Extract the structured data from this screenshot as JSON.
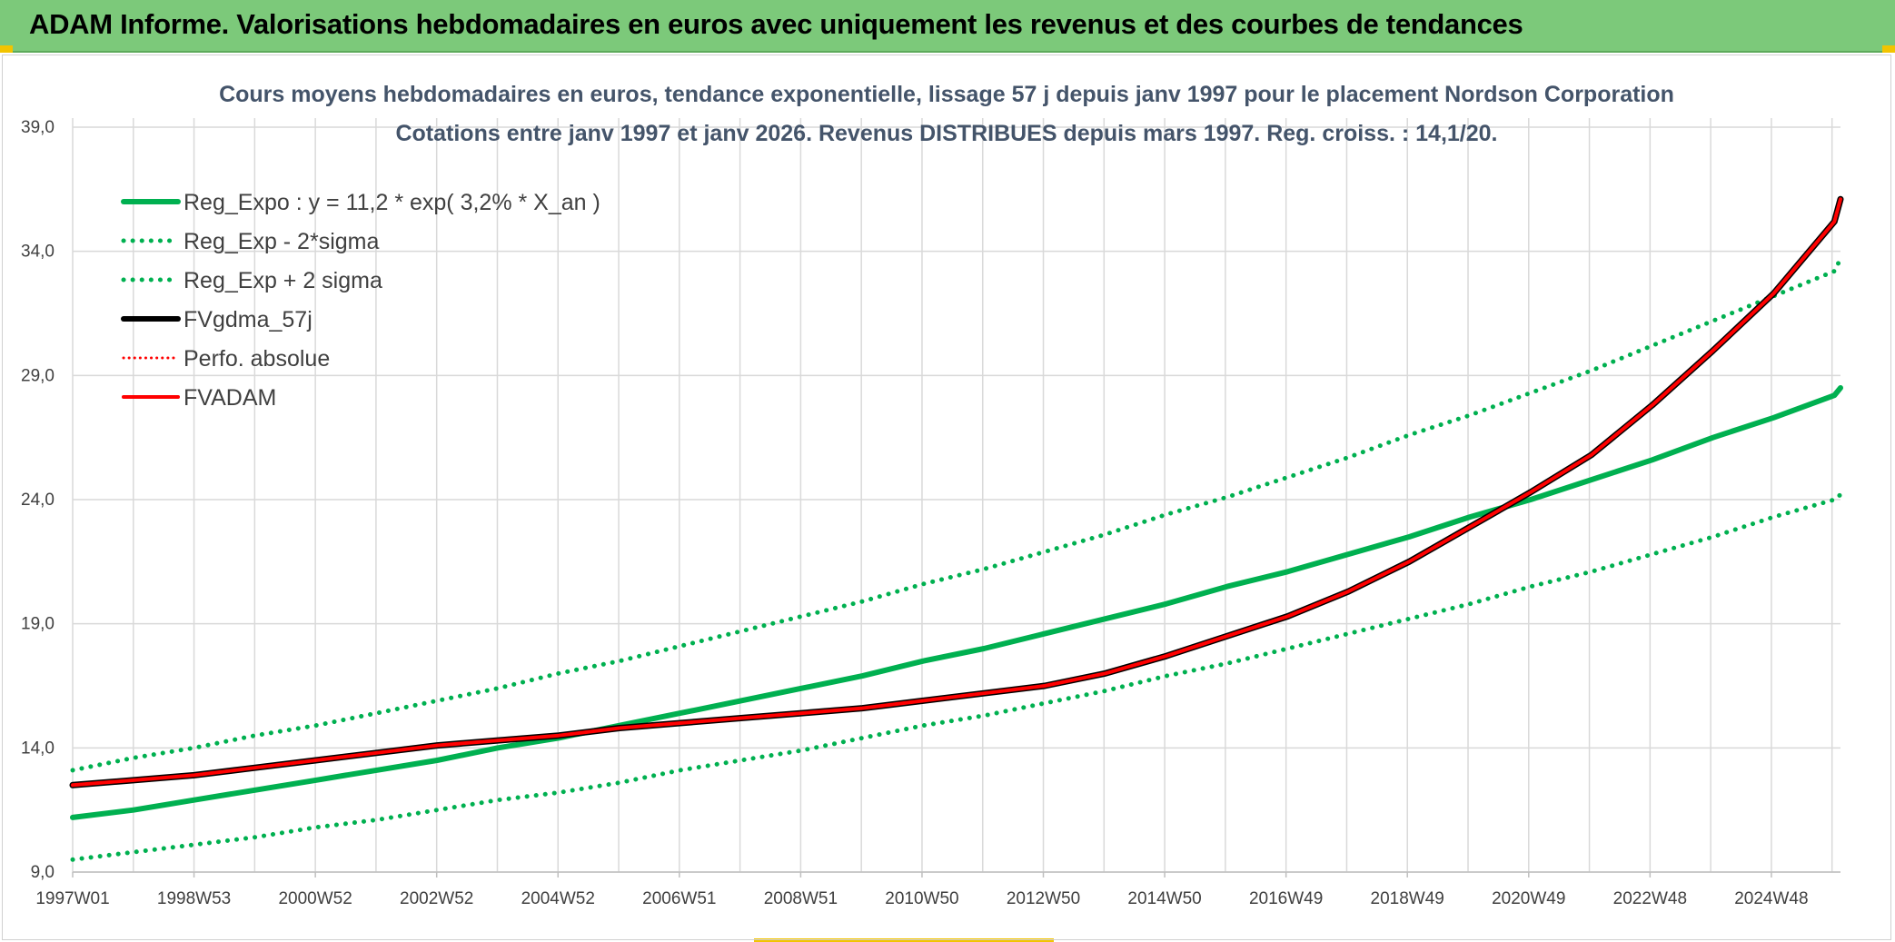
{
  "header": {
    "title": "ADAM Informe. Valorisations hebdomadaires en euros avec uniquement les revenus et des courbes de tendances"
  },
  "chart_data": {
    "type": "line",
    "title": "Cours moyens hebdomadaires en euros, tendance exponentielle, lissage 57 j depuis janv 1997 pour le placement Nordson Corporation",
    "subtitle": "Cotations entre janv 1997 et janv 2026. Revenus DISTRIBUES depuis mars 1997. Reg. croiss. : 14,1/20.",
    "xlabel": "",
    "ylabel": "",
    "x_ticks": [
      "1997W01",
      "1998W53",
      "2000W52",
      "2002W52",
      "2004W52",
      "2006W51",
      "2008W51",
      "2010W50",
      "2012W50",
      "2014W50",
      "2016W49",
      "2018W49",
      "2020W49",
      "2022W48",
      "2024W48"
    ],
    "y_ticks": [
      "9,0",
      "14,0",
      "19,0",
      "24,0",
      "29,0",
      "34,0",
      "39,0"
    ],
    "ylim": [
      9,
      39
    ],
    "xlim": [
      1997.0,
      2026.1
    ],
    "grid": true,
    "legend_position": "top-left",
    "x": [
      1997.0,
      1998.0,
      1999.0,
      2000.0,
      2001.0,
      2002.0,
      2003.0,
      2004.0,
      2005.0,
      2006.0,
      2007.0,
      2008.0,
      2009.0,
      2010.0,
      2011.0,
      2012.0,
      2013.0,
      2014.0,
      2015.0,
      2016.0,
      2017.0,
      2018.0,
      2019.0,
      2020.0,
      2021.0,
      2022.0,
      2023.0,
      2024.0,
      2025.0,
      2026.0,
      2026.1
    ],
    "series": [
      {
        "name": "Reg_Expo : y = 11,2 * exp( 3,2% *  X_an )",
        "color": "#00b050",
        "style": "solid",
        "width": 6,
        "values": [
          11.2,
          11.5,
          11.9,
          12.3,
          12.7,
          13.1,
          13.5,
          14.0,
          14.4,
          14.9,
          15.4,
          15.9,
          16.4,
          16.9,
          17.5,
          18.0,
          18.6,
          19.2,
          19.8,
          20.5,
          21.1,
          21.8,
          22.5,
          23.3,
          24.0,
          24.8,
          25.6,
          26.5,
          27.3,
          28.2,
          28.5
        ]
      },
      {
        "name": "Reg_Exp - 2*sigma",
        "color": "#00b050",
        "style": "dotted",
        "width": 5,
        "values": [
          9.5,
          9.8,
          10.1,
          10.4,
          10.8,
          11.1,
          11.5,
          11.9,
          12.2,
          12.6,
          13.1,
          13.5,
          13.9,
          14.4,
          14.9,
          15.3,
          15.8,
          16.3,
          16.9,
          17.4,
          18.0,
          18.6,
          19.2,
          19.8,
          20.5,
          21.1,
          21.8,
          22.5,
          23.3,
          24.0,
          24.2
        ]
      },
      {
        "name": "Reg_Exp + 2 sigma",
        "color": "#00b050",
        "style": "dotted",
        "width": 5,
        "values": [
          13.1,
          13.6,
          14.0,
          14.5,
          14.9,
          15.4,
          15.9,
          16.4,
          17.0,
          17.5,
          18.1,
          18.7,
          19.3,
          19.9,
          20.6,
          21.2,
          21.9,
          22.6,
          23.4,
          24.1,
          24.9,
          25.7,
          26.6,
          27.4,
          28.3,
          29.2,
          30.2,
          31.2,
          32.2,
          33.2,
          33.7
        ]
      },
      {
        "name": "FVgdma_57j",
        "color": "#000000",
        "style": "solid",
        "width": 6,
        "values": [
          12.5,
          12.7,
          12.9,
          13.2,
          13.5,
          13.8,
          14.1,
          14.3,
          14.5,
          14.8,
          15.0,
          15.2,
          15.4,
          15.6,
          15.9,
          16.2,
          16.5,
          17.0,
          17.7,
          18.5,
          19.3,
          20.3,
          21.5,
          22.9,
          24.3,
          25.8,
          27.8,
          30.0,
          32.3,
          35.2,
          36.1
        ]
      },
      {
        "name": "Perfo. absolue",
        "color": "#ff0000",
        "style": "dotted",
        "width": 3,
        "values": [
          12.5,
          12.7,
          12.9,
          13.2,
          13.5,
          13.8,
          14.1,
          14.3,
          14.5,
          14.8,
          15.0,
          15.2,
          15.4,
          15.6,
          15.9,
          16.2,
          16.5,
          17.0,
          17.7,
          18.5,
          19.3,
          20.3,
          21.5,
          22.9,
          24.3,
          25.8,
          27.8,
          30.0,
          32.3,
          35.2,
          36.1
        ]
      },
      {
        "name": "FVADAM",
        "color": "#ff0000",
        "style": "solid",
        "width": 4,
        "values": [
          12.5,
          12.7,
          12.9,
          13.2,
          13.5,
          13.8,
          14.1,
          14.3,
          14.5,
          14.8,
          15.0,
          15.2,
          15.4,
          15.6,
          15.9,
          16.2,
          16.5,
          17.0,
          17.7,
          18.5,
          19.3,
          20.3,
          21.5,
          22.9,
          24.3,
          25.8,
          27.8,
          30.0,
          32.3,
          35.2,
          36.1
        ]
      }
    ]
  }
}
